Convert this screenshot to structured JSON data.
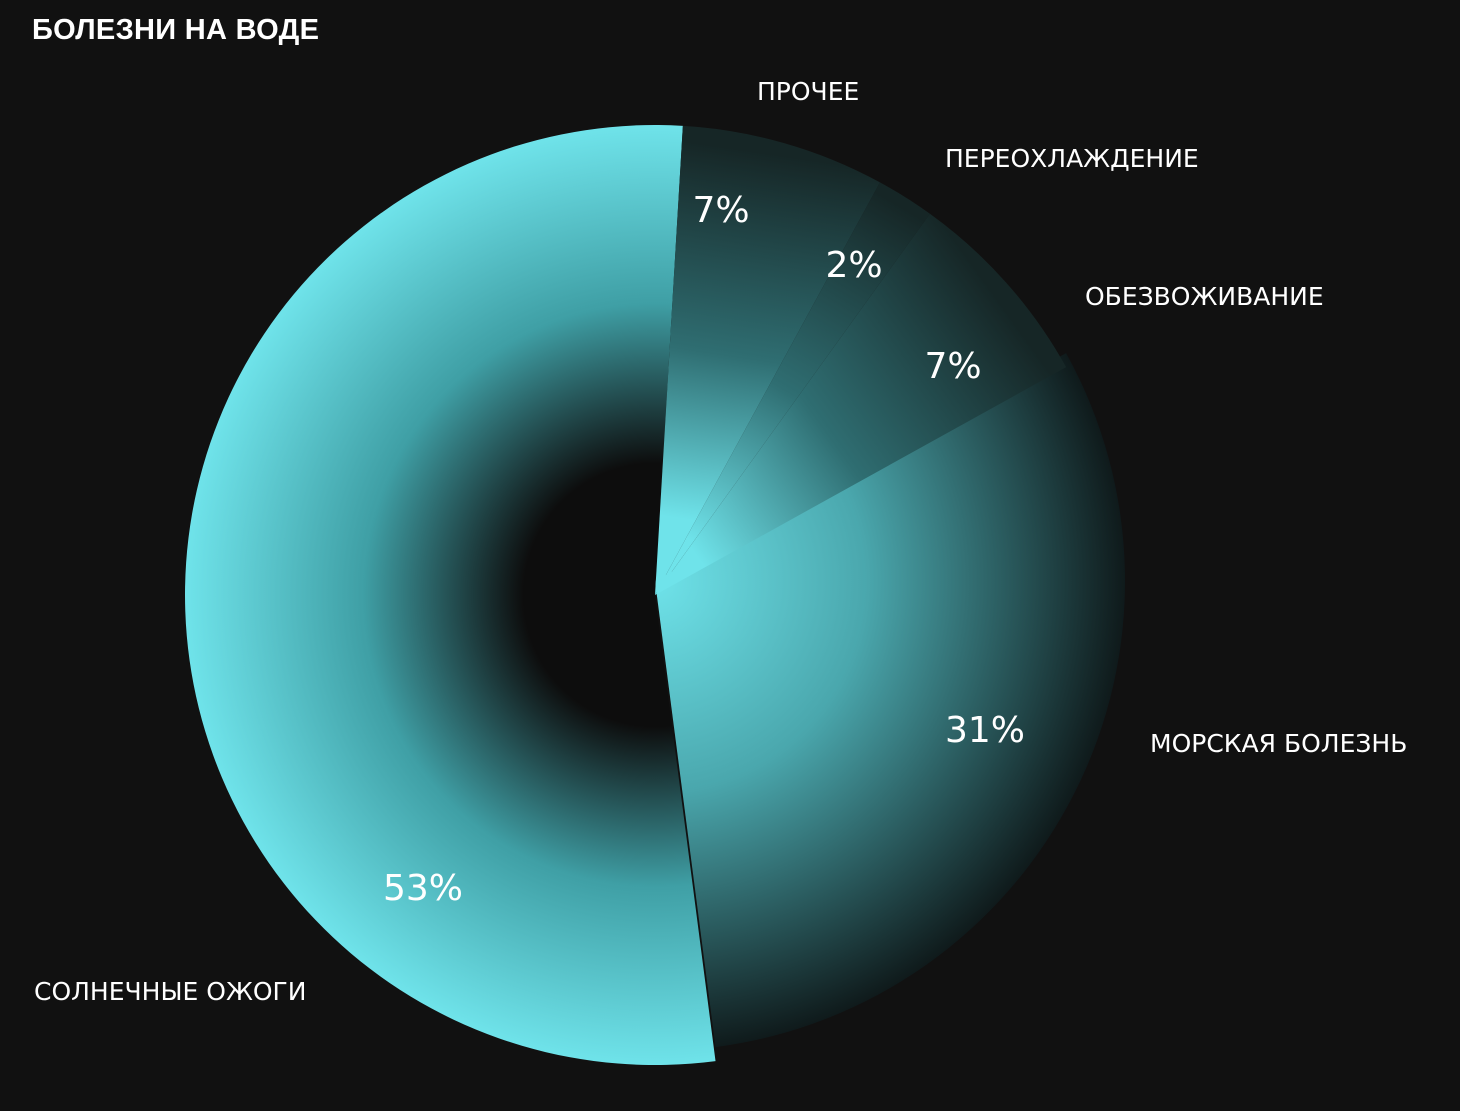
{
  "chart_data": {
    "type": "pie",
    "title": "БОЛЕЗНИ НА ВОДЕ",
    "slices": [
      {
        "label": "МОРСКАЯ БОЛЕЗНЬ",
        "value": 31,
        "value_label": "31%"
      },
      {
        "label": "СОЛНЕЧНЫЕ ОЖОГИ",
        "value": 53,
        "value_label": "53%"
      },
      {
        "label": "ПРОЧЕЕ",
        "value": 7,
        "value_label": "7%"
      },
      {
        "label": "ПЕРЕОХЛАЖДЕНИЕ",
        "value": 2,
        "value_label": "2%"
      },
      {
        "label": "ОБЕЗВОЖИВАНИЕ",
        "value": 7,
        "value_label": "7%"
      }
    ],
    "start_angle_deg": 61,
    "direction": "clockwise",
    "legend": "none",
    "colors": {
      "background": "#111111",
      "accent": "#6fe3ea",
      "dark": "#0d0d0d",
      "text": "#ffffff"
    }
  }
}
